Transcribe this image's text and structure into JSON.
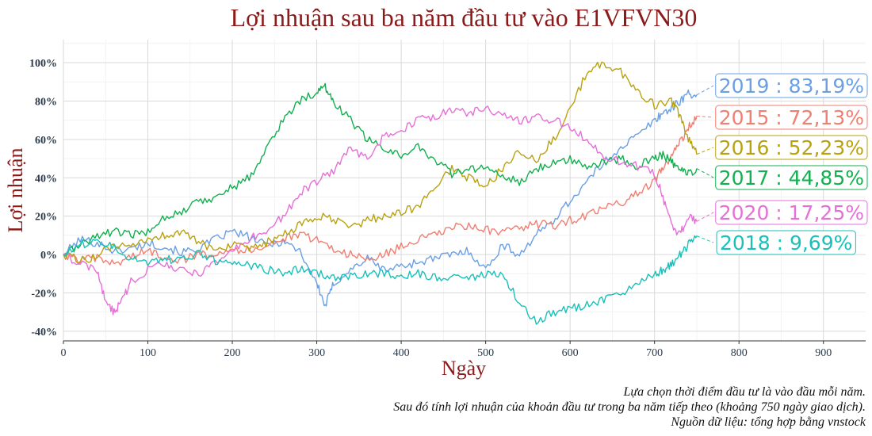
{
  "chart_data": {
    "type": "line",
    "title": "Lợi nhuận sau ba năm đầu tư vào E1VFVN30",
    "xlabel": "Ngày",
    "ylabel": "Lợi nhuận",
    "xlim": [
      0,
      950
    ],
    "ylim": [
      -45,
      112
    ],
    "x_ticks": [
      0,
      100,
      200,
      300,
      400,
      500,
      600,
      700,
      800,
      900
    ],
    "y_ticks": [
      -40,
      -20,
      0,
      20,
      40,
      60,
      80,
      100
    ],
    "y_tick_labels": [
      "-40%",
      "-20%",
      "0%",
      "20%",
      "40%",
      "60%",
      "80%",
      "100%"
    ],
    "grid": true,
    "legend": "end-labels",
    "series": [
      {
        "name": "2019",
        "end_label": "2019 : 83,19%",
        "color": "#6a9fe6",
        "points": [
          [
            0,
            0
          ],
          [
            20,
            8
          ],
          [
            40,
            6
          ],
          [
            60,
            2
          ],
          [
            80,
            3
          ],
          [
            100,
            6
          ],
          [
            120,
            4
          ],
          [
            140,
            1
          ],
          [
            160,
            3
          ],
          [
            180,
            8
          ],
          [
            200,
            12
          ],
          [
            220,
            9
          ],
          [
            240,
            5
          ],
          [
            260,
            7
          ],
          [
            280,
            2
          ],
          [
            300,
            -15
          ],
          [
            310,
            -27
          ],
          [
            320,
            -15
          ],
          [
            340,
            -8
          ],
          [
            360,
            -2
          ],
          [
            380,
            -8
          ],
          [
            400,
            -6
          ],
          [
            420,
            -4
          ],
          [
            440,
            -2
          ],
          [
            460,
            0
          ],
          [
            480,
            2
          ],
          [
            500,
            -8
          ],
          [
            520,
            5
          ],
          [
            540,
            0
          ],
          [
            560,
            10
          ],
          [
            580,
            18
          ],
          [
            600,
            28
          ],
          [
            620,
            38
          ],
          [
            640,
            48
          ],
          [
            660,
            56
          ],
          [
            680,
            62
          ],
          [
            700,
            70
          ],
          [
            710,
            74
          ],
          [
            720,
            76
          ],
          [
            730,
            80
          ],
          [
            740,
            84
          ],
          [
            750,
            83.19
          ]
        ]
      },
      {
        "name": "2015",
        "end_label": "2015 : 72,13%",
        "color": "#f07f72",
        "points": [
          [
            0,
            0
          ],
          [
            20,
            -3
          ],
          [
            40,
            -2
          ],
          [
            60,
            -5
          ],
          [
            80,
            -1
          ],
          [
            100,
            2
          ],
          [
            120,
            -1
          ],
          [
            140,
            -3
          ],
          [
            160,
            0
          ],
          [
            180,
            1
          ],
          [
            200,
            3
          ],
          [
            220,
            2
          ],
          [
            240,
            5
          ],
          [
            260,
            8
          ],
          [
            280,
            10
          ],
          [
            300,
            8
          ],
          [
            320,
            3
          ],
          [
            340,
            0
          ],
          [
            360,
            -3
          ],
          [
            380,
            0
          ],
          [
            400,
            4
          ],
          [
            420,
            8
          ],
          [
            440,
            10
          ],
          [
            460,
            14
          ],
          [
            480,
            15
          ],
          [
            500,
            13
          ],
          [
            520,
            11
          ],
          [
            540,
            14
          ],
          [
            560,
            16
          ],
          [
            580,
            15
          ],
          [
            600,
            18
          ],
          [
            620,
            20
          ],
          [
            640,
            24
          ],
          [
            660,
            27
          ],
          [
            680,
            32
          ],
          [
            700,
            38
          ],
          [
            710,
            45
          ],
          [
            720,
            52
          ],
          [
            730,
            58
          ],
          [
            740,
            66
          ],
          [
            750,
            72.13
          ]
        ]
      },
      {
        "name": "2016",
        "end_label": "2016 : 52,23%",
        "color": "#b9a210",
        "points": [
          [
            0,
            0
          ],
          [
            20,
            -3
          ],
          [
            40,
            -1
          ],
          [
            60,
            5
          ],
          [
            80,
            3
          ],
          [
            100,
            8
          ],
          [
            120,
            10
          ],
          [
            140,
            12
          ],
          [
            160,
            6
          ],
          [
            180,
            3
          ],
          [
            200,
            5
          ],
          [
            220,
            2
          ],
          [
            240,
            6
          ],
          [
            260,
            10
          ],
          [
            280,
            15
          ],
          [
            300,
            20
          ],
          [
            320,
            18
          ],
          [
            340,
            14
          ],
          [
            360,
            18
          ],
          [
            380,
            20
          ],
          [
            400,
            22
          ],
          [
            420,
            25
          ],
          [
            440,
            35
          ],
          [
            460,
            45
          ],
          [
            480,
            40
          ],
          [
            500,
            35
          ],
          [
            520,
            45
          ],
          [
            540,
            55
          ],
          [
            560,
            48
          ],
          [
            580,
            60
          ],
          [
            600,
            75
          ],
          [
            620,
            95
          ],
          [
            640,
            100
          ],
          [
            660,
            95
          ],
          [
            680,
            85
          ],
          [
            700,
            78
          ],
          [
            720,
            80
          ],
          [
            730,
            72
          ],
          [
            740,
            60
          ],
          [
            750,
            52.23
          ]
        ]
      },
      {
        "name": "2017",
        "end_label": "2017 : 44,85%",
        "color": "#12b04f",
        "points": [
          [
            0,
            0
          ],
          [
            20,
            5
          ],
          [
            40,
            10
          ],
          [
            60,
            12
          ],
          [
            80,
            10
          ],
          [
            100,
            12
          ],
          [
            120,
            20
          ],
          [
            140,
            22
          ],
          [
            160,
            28
          ],
          [
            180,
            30
          ],
          [
            200,
            35
          ],
          [
            220,
            40
          ],
          [
            240,
            55
          ],
          [
            260,
            70
          ],
          [
            280,
            80
          ],
          [
            300,
            85
          ],
          [
            310,
            87
          ],
          [
            320,
            80
          ],
          [
            340,
            70
          ],
          [
            360,
            60
          ],
          [
            380,
            55
          ],
          [
            400,
            52
          ],
          [
            420,
            56
          ],
          [
            440,
            50
          ],
          [
            460,
            42
          ],
          [
            480,
            44
          ],
          [
            500,
            46
          ],
          [
            520,
            40
          ],
          [
            540,
            38
          ],
          [
            560,
            45
          ],
          [
            580,
            48
          ],
          [
            600,
            50
          ],
          [
            620,
            45
          ],
          [
            640,
            48
          ],
          [
            660,
            50
          ],
          [
            680,
            46
          ],
          [
            700,
            50
          ],
          [
            710,
            52
          ],
          [
            720,
            48
          ],
          [
            730,
            44
          ],
          [
            740,
            42
          ],
          [
            750,
            44.85
          ]
        ]
      },
      {
        "name": "2020",
        "end_label": "2020 : 17,25%",
        "color": "#e66fd8",
        "points": [
          [
            0,
            0
          ],
          [
            20,
            -5
          ],
          [
            40,
            -8
          ],
          [
            50,
            -25
          ],
          [
            60,
            -30
          ],
          [
            70,
            -24
          ],
          [
            80,
            -14
          ],
          [
            100,
            -8
          ],
          [
            120,
            -5
          ],
          [
            140,
            -8
          ],
          [
            160,
            -10
          ],
          [
            180,
            -5
          ],
          [
            200,
            2
          ],
          [
            220,
            8
          ],
          [
            240,
            12
          ],
          [
            260,
            20
          ],
          [
            280,
            32
          ],
          [
            300,
            38
          ],
          [
            320,
            44
          ],
          [
            340,
            55
          ],
          [
            360,
            50
          ],
          [
            380,
            62
          ],
          [
            400,
            65
          ],
          [
            420,
            70
          ],
          [
            440,
            72
          ],
          [
            460,
            75
          ],
          [
            480,
            74
          ],
          [
            500,
            76
          ],
          [
            520,
            72
          ],
          [
            540,
            70
          ],
          [
            560,
            72
          ],
          [
            580,
            70
          ],
          [
            600,
            66
          ],
          [
            620,
            60
          ],
          [
            640,
            52
          ],
          [
            660,
            48
          ],
          [
            680,
            46
          ],
          [
            700,
            42
          ],
          [
            710,
            30
          ],
          [
            720,
            15
          ],
          [
            730,
            10
          ],
          [
            740,
            20
          ],
          [
            750,
            17.25
          ]
        ]
      },
      {
        "name": "2018",
        "end_label": "2018 : 9,69%",
        "color": "#18c1b9",
        "points": [
          [
            0,
            0
          ],
          [
            20,
            5
          ],
          [
            40,
            8
          ],
          [
            60,
            4
          ],
          [
            80,
            -2
          ],
          [
            100,
            -4
          ],
          [
            120,
            -3
          ],
          [
            140,
            -2
          ],
          [
            160,
            0
          ],
          [
            180,
            -3
          ],
          [
            200,
            -4
          ],
          [
            220,
            -6
          ],
          [
            240,
            -8
          ],
          [
            260,
            -9
          ],
          [
            280,
            -8
          ],
          [
            300,
            -10
          ],
          [
            320,
            -12
          ],
          [
            340,
            -11
          ],
          [
            360,
            -10
          ],
          [
            380,
            -10
          ],
          [
            400,
            -11
          ],
          [
            420,
            -10
          ],
          [
            440,
            -12
          ],
          [
            460,
            -11
          ],
          [
            480,
            -12
          ],
          [
            500,
            -10
          ],
          [
            520,
            -11
          ],
          [
            540,
            -25
          ],
          [
            560,
            -35
          ],
          [
            580,
            -30
          ],
          [
            600,
            -28
          ],
          [
            620,
            -26
          ],
          [
            640,
            -24
          ],
          [
            660,
            -20
          ],
          [
            680,
            -16
          ],
          [
            700,
            -10
          ],
          [
            710,
            -8
          ],
          [
            720,
            -5
          ],
          [
            730,
            0
          ],
          [
            740,
            5
          ],
          [
            750,
            9.69
          ]
        ]
      }
    ],
    "caption_lines": [
      "Lựa chọn thời điểm đầu tư là vào đầu mỗi năm.",
      "Sau đó tính lợi nhuận của khoản đầu tư trong ba năm tiếp theo (khoảng 750 ngày giao dịch).",
      "Nguồn dữ liệu: tổng hợp bằng vnstock"
    ]
  }
}
